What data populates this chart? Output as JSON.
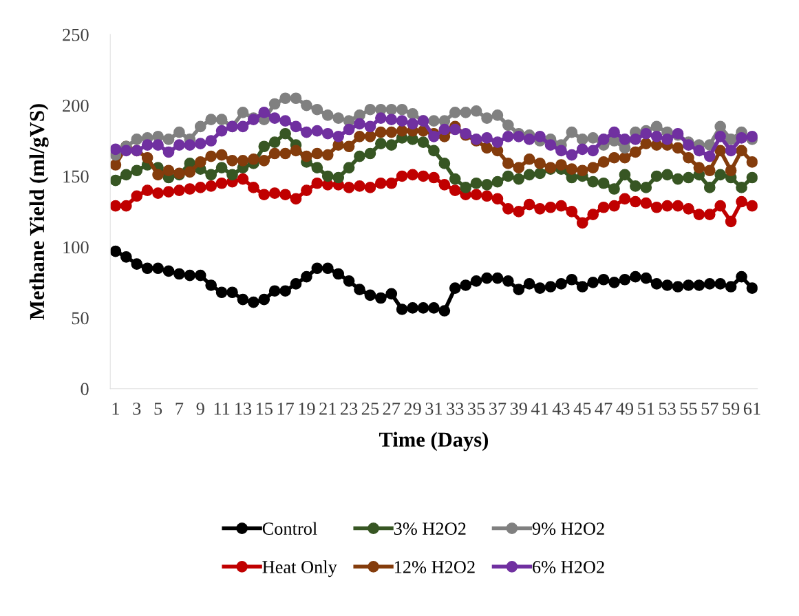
{
  "chart_data": {
    "type": "line",
    "xlabel": "Time (Days)",
    "ylabel": "Methane Yield (ml/gVS)",
    "categories": [
      "1",
      null,
      "3",
      null,
      "5",
      null,
      "7",
      null,
      "9",
      null,
      "11",
      null,
      "13",
      null,
      "15",
      null,
      "17",
      null,
      "19",
      null,
      "21",
      null,
      "23",
      null,
      "25",
      null,
      "27",
      null,
      "29",
      null,
      "31",
      null,
      "33",
      null,
      "35",
      null,
      "37",
      null,
      "39",
      null,
      "41",
      null,
      "43",
      null,
      "45",
      null,
      "47",
      null,
      "49",
      null,
      "51",
      null,
      "53",
      null,
      "55",
      null,
      "57",
      null,
      "59",
      null,
      "61"
    ],
    "series": [
      {
        "name": "Control",
        "color": "#000000",
        "values": [
          97,
          93,
          88,
          85,
          85,
          83,
          81,
          80,
          80,
          73,
          68,
          68,
          63,
          61,
          63,
          69,
          69,
          74,
          79,
          85,
          85,
          81,
          76,
          70,
          66,
          64,
          67,
          56,
          57,
          57,
          57,
          55,
          71,
          73,
          76,
          78,
          78,
          76,
          70,
          74,
          71,
          72,
          74,
          77,
          72,
          75,
          77,
          75,
          77,
          79,
          78,
          74,
          73,
          72,
          73,
          73,
          74,
          74,
          72,
          79,
          71
        ]
      },
      {
        "name": "Heat Only",
        "color": "#c00000",
        "values": [
          129,
          129,
          136,
          140,
          138,
          139,
          140,
          141,
          142,
          143,
          145,
          146,
          148,
          142,
          137,
          138,
          137,
          134,
          140,
          145,
          144,
          144,
          142,
          143,
          142,
          145,
          145,
          150,
          151,
          150,
          149,
          144,
          140,
          137,
          137,
          136,
          134,
          127,
          125,
          130,
          127,
          128,
          129,
          125,
          117,
          123,
          128,
          129,
          134,
          132,
          131,
          128,
          129,
          129,
          127,
          123,
          123,
          129,
          118,
          132,
          129
        ]
      },
      {
        "name": "3% H2O2",
        "color": "#375623",
        "values": [
          147,
          151,
          154,
          158,
          156,
          149,
          151,
          159,
          155,
          151,
          156,
          151,
          156,
          159,
          171,
          174,
          180,
          172,
          160,
          156,
          150,
          149,
          156,
          164,
          166,
          173,
          172,
          177,
          176,
          174,
          168,
          159,
          148,
          142,
          145,
          144,
          146,
          150,
          148,
          151,
          152,
          155,
          155,
          149,
          150,
          146,
          145,
          141,
          151,
          143,
          142,
          150,
          151,
          148,
          149,
          151,
          142,
          151,
          149,
          142,
          149
        ]
      },
      {
        "name": "12% H2O2",
        "color": "#843c0c",
        "values": [
          158,
          171,
          168,
          163,
          151,
          154,
          152,
          153,
          160,
          164,
          165,
          161,
          161,
          162,
          161,
          166,
          166,
          168,
          164,
          166,
          165,
          172,
          171,
          178,
          178,
          181,
          181,
          182,
          182,
          182,
          180,
          178,
          185,
          179,
          175,
          170,
          168,
          159,
          156,
          162,
          159,
          156,
          158,
          155,
          154,
          156,
          160,
          163,
          163,
          167,
          173,
          172,
          172,
          170,
          163,
          156,
          154,
          168,
          154,
          168,
          160
        ]
      },
      {
        "name": "9% H2O2",
        "color": "#808080",
        "values": [
          165,
          171,
          176,
          177,
          178,
          176,
          181,
          176,
          185,
          190,
          190,
          185,
          195,
          191,
          190,
          201,
          205,
          205,
          200,
          197,
          193,
          191,
          189,
          193,
          197,
          197,
          197,
          197,
          194,
          189,
          189,
          189,
          195,
          195,
          196,
          191,
          193,
          186,
          180,
          179,
          175,
          176,
          172,
          181,
          176,
          177,
          172,
          175,
          170,
          181,
          182,
          185,
          181,
          179,
          174,
          172,
          172,
          185,
          176,
          181,
          176
        ]
      },
      {
        "name": "6% H2O2",
        "color": "#7030a0",
        "values": [
          169,
          168,
          168,
          172,
          172,
          167,
          172,
          172,
          173,
          175,
          182,
          185,
          185,
          190,
          195,
          191,
          189,
          185,
          181,
          182,
          180,
          178,
          183,
          187,
          185,
          191,
          190,
          189,
          187,
          189,
          178,
          183,
          183,
          180,
          176,
          177,
          174,
          178,
          178,
          176,
          178,
          172,
          168,
          165,
          169,
          168,
          176,
          181,
          176,
          176,
          180,
          178,
          176,
          180,
          172,
          168,
          164,
          178,
          168,
          177,
          178
        ]
      }
    ],
    "ylim": [
      0,
      250
    ],
    "yticks": [
      0,
      50,
      100,
      150,
      200,
      250
    ],
    "grid": false,
    "legend": "bottom",
    "marker": "circle",
    "line_style": "solid"
  }
}
